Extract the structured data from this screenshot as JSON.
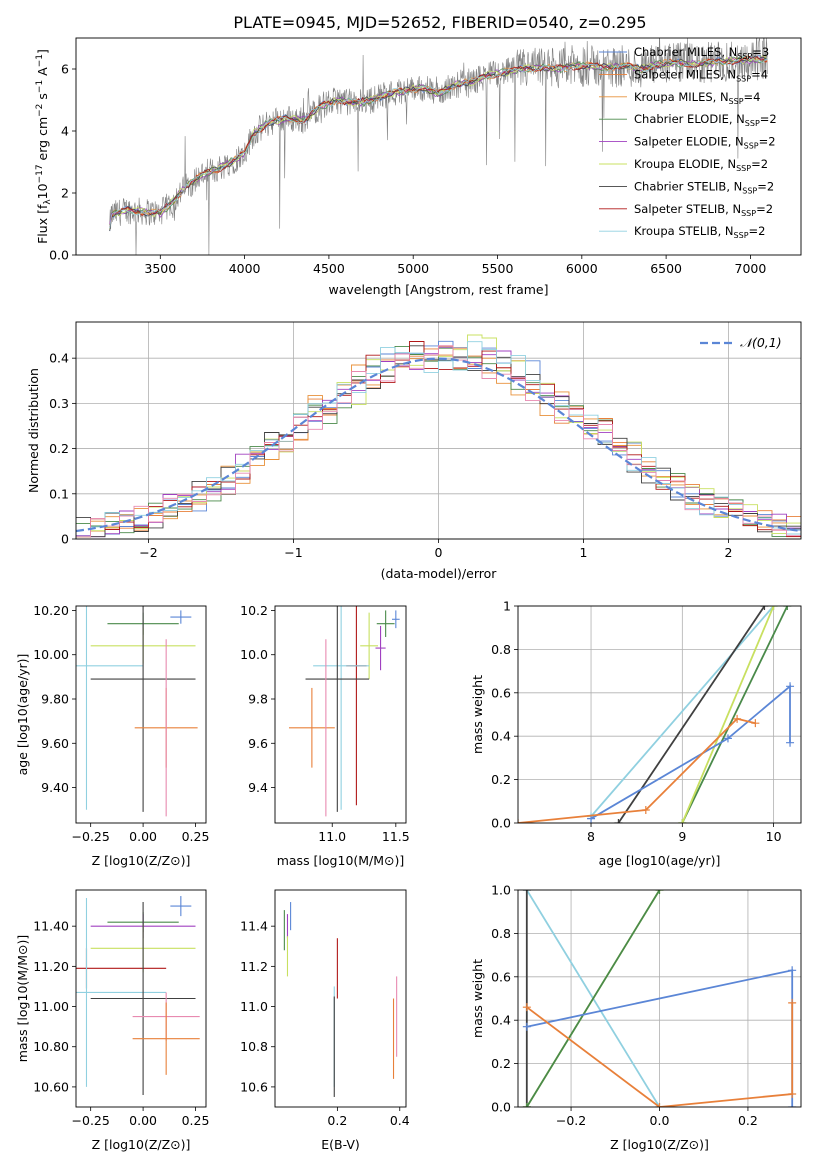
{
  "figure": {
    "title": "PLATE=0945, MJD=52652, FIBERID=0540, z=0.295"
  },
  "colors": {
    "Chabrier MILES": "#5b86d6",
    "Salpeter MILES": "#e8803a",
    "Kroupa MILES": "#e8913a",
    "Chabrier ELODIE": "#4a8a4a",
    "Salpeter ELODIE": "#a040c0",
    "Kroupa ELODIE": "#c8e060",
    "Chabrier STELIB": "#404040",
    "Salpeter STELIB": "#b01818",
    "Kroupa STELIB": "#90d0e0",
    "pink": "#e88ab0",
    "data": "#808080"
  },
  "chart_data": [
    {
      "id": "spectrum",
      "type": "line",
      "title": "PLATE=0945, MJD=52652, FIBERID=0540, z=0.295",
      "xlabel": "wavelength [Angstrom, rest frame]",
      "ylabel": "Flux [f_λ 10^-17 erg cm^-2 s^-1 A^-1]",
      "xlim": [
        3000,
        7300
      ],
      "ylim": [
        0,
        7
      ],
      "xticks": [
        3500,
        4000,
        4500,
        5000,
        5500,
        6000,
        6500,
        7000
      ],
      "yticks": [
        0,
        2,
        4,
        6
      ],
      "legend": {
        "placement": "upper-right",
        "entries": [
          {
            "label": "Chabrier MILES, N_SSP=3",
            "pre": "Chabrier MILES, N",
            "sub": "SSP",
            "post": "=3"
          },
          {
            "label": "Salpeter MILES, N_SSP=4",
            "pre": "Salpeter MILES, N",
            "sub": "SSP",
            "post": "=4"
          },
          {
            "label": "Kroupa MILES, N_SSP=4",
            "pre": "Kroupa MILES, N",
            "sub": "SSP",
            "post": "=4"
          },
          {
            "label": "Chabrier ELODIE, N_SSP=2",
            "pre": "Chabrier ELODIE, N",
            "sub": "SSP",
            "post": "=2"
          },
          {
            "label": "Salpeter ELODIE, N_SSP=2",
            "pre": "Salpeter ELODIE, N",
            "sub": "SSP",
            "post": "=2"
          },
          {
            "label": "Kroupa ELODIE, N_SSP=2",
            "pre": "Kroupa ELODIE, N",
            "sub": "SSP",
            "post": "=2"
          },
          {
            "label": "Chabrier STELIB, N_SSP=2",
            "pre": "Chabrier STELIB, N",
            "sub": "SSP",
            "post": "=2"
          },
          {
            "label": "Salpeter STELIB, N_SSP=2",
            "pre": "Salpeter STELIB, N",
            "sub": "SSP",
            "post": "=2"
          },
          {
            "label": "Kroupa STELIB, N_SSP=2",
            "pre": "Kroupa STELIB, N",
            "sub": "SSP",
            "post": "=2"
          }
        ]
      },
      "spectrum_knots": [
        [
          3200,
          0.9
        ],
        [
          3210,
          1.3
        ],
        [
          3300,
          1.45
        ],
        [
          3400,
          1.4
        ],
        [
          3500,
          1.35
        ],
        [
          3550,
          1.6
        ],
        [
          3650,
          2.2
        ],
        [
          3750,
          2.6
        ],
        [
          3850,
          2.8
        ],
        [
          3950,
          3.1
        ],
        [
          4000,
          3.3
        ],
        [
          4050,
          3.9
        ],
        [
          4150,
          4.3
        ],
        [
          4250,
          4.4
        ],
        [
          4350,
          4.35
        ],
        [
          4450,
          4.8
        ],
        [
          4550,
          5.0
        ],
        [
          4650,
          4.9
        ],
        [
          4750,
          5.0
        ],
        [
          4850,
          5.2
        ],
        [
          4950,
          5.3
        ],
        [
          5050,
          5.4
        ],
        [
          5150,
          5.2
        ],
        [
          5250,
          5.5
        ],
        [
          5350,
          5.6
        ],
        [
          5450,
          5.8
        ],
        [
          5550,
          5.9
        ],
        [
          5650,
          6.0
        ],
        [
          5750,
          6.05
        ],
        [
          5850,
          6.0
        ],
        [
          5950,
          6.1
        ],
        [
          6050,
          6.1
        ],
        [
          6150,
          6.05
        ],
        [
          6250,
          6.1
        ],
        [
          6350,
          6.0
        ],
        [
          6450,
          6.15
        ],
        [
          6550,
          6.2
        ],
        [
          6650,
          6.15
        ],
        [
          6750,
          6.2
        ],
        [
          6850,
          6.25
        ],
        [
          6950,
          6.3
        ],
        [
          7050,
          6.3
        ],
        [
          7100,
          6.35
        ]
      ]
    },
    {
      "id": "residuals",
      "type": "area",
      "xlabel": "(data-model)/error",
      "ylabel": "Normed distribution",
      "xlim": [
        -2.5,
        2.5
      ],
      "ylim": [
        0,
        0.48
      ],
      "xticks": [
        -2,
        -1,
        0,
        1,
        2
      ],
      "yticks": [
        0.0,
        0.1,
        0.2,
        0.3,
        0.4
      ],
      "legend": {
        "placement": "upper-right",
        "entries": [
          {
            "label": "𝒩(0,1)"
          }
        ]
      },
      "bin_width": 0.1
    },
    {
      "id": "age_vs_Z",
      "type": "scatter",
      "xlabel": "Z [log10(Z/Z⊙)]",
      "ylabel": "age [log10(age/yr)]",
      "xlim": [
        -0.32,
        0.3
      ],
      "ylim": [
        9.24,
        10.22
      ],
      "xticks": [
        -0.25,
        0.0,
        0.25
      ],
      "yticks": [
        9.4,
        9.6,
        9.8,
        10.0,
        10.2
      ],
      "points": [
        {
          "series": "Chabrier MILES",
          "x": 0.18,
          "y": 10.17,
          "xerr": 0.05,
          "yerr": 0.03
        },
        {
          "series": "Chabrier ELODIE",
          "x": 0.0,
          "y": 10.14,
          "xerr": 0.17,
          "yerr": 0.05
        },
        {
          "series": "Kroupa ELODIE",
          "x": 0.0,
          "y": 10.04,
          "xerr": 0.25,
          "yerr": 0.08
        },
        {
          "series": "Kroupa STELIB",
          "x": -0.27,
          "y": 9.95,
          "xerr": 0.27,
          "yerr": 0.65
        },
        {
          "series": "Chabrier STELIB",
          "x": 0.0,
          "y": 9.89,
          "xerr": 0.25,
          "yerr": 0.6
        },
        {
          "series": "Salpeter MILES",
          "x": 0.11,
          "y": 9.67,
          "xerr": 0.15,
          "yerr": 0.18
        },
        {
          "series": "pink",
          "x": 0.11,
          "y": 9.67,
          "xerr": 0.0,
          "yerr": 0.4
        }
      ]
    },
    {
      "id": "age_vs_mass",
      "type": "scatter",
      "xlabel": "mass [log10(M/M⊙)]",
      "ylabel": "",
      "xlim": [
        10.55,
        11.58
      ],
      "ylim": [
        9.24,
        10.22
      ],
      "xticks": [
        11.0,
        11.5
      ],
      "yticks": [
        9.4,
        9.6,
        9.8,
        10.0,
        10.2
      ],
      "points": [
        {
          "series": "Chabrier MILES",
          "x": 11.5,
          "y": 10.16,
          "xerr": 0.03,
          "yerr": 0.04
        },
        {
          "series": "Chabrier ELODIE",
          "x": 11.42,
          "y": 10.14,
          "xerr": 0.07,
          "yerr": 0.06
        },
        {
          "series": "Salpeter ELODIE",
          "x": 11.38,
          "y": 10.03,
          "xerr": 0.04,
          "yerr": 0.1
        },
        {
          "series": "Kroupa ELODIE",
          "x": 11.29,
          "y": 10.04,
          "xerr": 0.07,
          "yerr": 0.15
        },
        {
          "series": "Salpeter STELIB",
          "x": 11.19,
          "y": 9.95,
          "xerr": 0.08,
          "yerr": 0.63
        },
        {
          "series": "Kroupa STELIB",
          "x": 11.07,
          "y": 9.95,
          "xerr": 0.22,
          "yerr": 0.65
        },
        {
          "series": "Chabrier STELIB",
          "x": 11.04,
          "y": 9.89,
          "xerr": 0.25,
          "yerr": 0.6
        },
        {
          "series": "Salpeter MILES",
          "x": 10.84,
          "y": 9.67,
          "xerr": 0.18,
          "yerr": 0.18
        },
        {
          "series": "pink",
          "x": 10.95,
          "y": 9.67,
          "xerr": 0.0,
          "yerr": 0.4
        }
      ]
    },
    {
      "id": "massweight_vs_age",
      "type": "line",
      "xlabel": "age [log10(age/yr)]",
      "ylabel": "mass weight",
      "xlim": [
        7.2,
        10.3
      ],
      "ylim": [
        0.0,
        1.0
      ],
      "xticks": [
        8,
        9,
        10
      ],
      "yticks": [
        0.0,
        0.2,
        0.4,
        0.6,
        0.8,
        1.0
      ],
      "series": [
        {
          "name": "Kroupa STELIB",
          "x": [
            8.0,
            10.0
          ],
          "y": [
            0.03,
            1.0
          ]
        },
        {
          "name": "Chabrier STELIB",
          "x": [
            8.3,
            9.9
          ],
          "y": [
            0.0,
            1.0
          ]
        },
        {
          "name": "Chabrier ELODIE",
          "x": [
            9.0,
            10.15
          ],
          "y": [
            0.0,
            1.0
          ]
        },
        {
          "name": "Kroupa ELODIE",
          "x": [
            9.0,
            10.0
          ],
          "y": [
            0.0,
            1.0
          ]
        },
        {
          "name": "Chabrier MILES",
          "x": [
            8.0,
            9.5,
            10.18,
            10.18
          ],
          "y": [
            0.02,
            0.39,
            0.63,
            0.37
          ]
        },
        {
          "name": "Salpeter MILES",
          "x": [
            7.2,
            8.6,
            9.6,
            9.8
          ],
          "y": [
            0.0,
            0.06,
            0.48,
            0.46
          ]
        }
      ]
    },
    {
      "id": "mass_vs_Z",
      "type": "scatter",
      "xlabel": "Z [log10(Z/Z⊙)]",
      "ylabel": "mass [log10(M/M⊙)]",
      "xlim": [
        -0.32,
        0.3
      ],
      "ylim": [
        10.5,
        11.58
      ],
      "xticks": [
        -0.25,
        0.0,
        0.25
      ],
      "yticks": [
        10.6,
        10.8,
        11.0,
        11.2,
        11.4
      ],
      "points": [
        {
          "series": "Chabrier MILES",
          "x": 0.18,
          "y": 11.5,
          "xerr": 0.05,
          "yerr": 0.05
        },
        {
          "series": "Chabrier ELODIE",
          "x": 0.0,
          "y": 11.42,
          "xerr": 0.17,
          "yerr": 0.05
        },
        {
          "series": "Salpeter ELODIE",
          "x": 0.0,
          "y": 11.4,
          "xerr": 0.25,
          "yerr": 0.06
        },
        {
          "series": "Kroupa ELODIE",
          "x": 0.0,
          "y": 11.29,
          "xerr": 0.25,
          "yerr": 0.12
        },
        {
          "series": "Salpeter STELIB",
          "x": -0.27,
          "y": 11.19,
          "xerr": 0.38,
          "yerr": 0.1
        },
        {
          "series": "Kroupa STELIB",
          "x": -0.27,
          "y": 11.07,
          "xerr": 0.38,
          "yerr": 0.47
        },
        {
          "series": "Chabrier STELIB",
          "x": 0.0,
          "y": 11.04,
          "xerr": 0.25,
          "yerr": 0.48
        },
        {
          "series": "pink",
          "x": 0.11,
          "y": 10.95,
          "xerr": 0.16,
          "yerr": 0.12
        },
        {
          "series": "Salpeter MILES",
          "x": 0.11,
          "y": 10.84,
          "xerr": 0.16,
          "yerr": 0.18
        }
      ]
    },
    {
      "id": "mass_vs_EBV",
      "type": "scatter",
      "xlabel": "E(B-V)",
      "ylabel": "",
      "xlim": [
        0.0,
        0.42
      ],
      "ylim": [
        10.5,
        11.58
      ],
      "xticks": [
        0.2,
        0.4
      ],
      "yticks": [
        10.6,
        10.8,
        11.0,
        11.2,
        11.4
      ],
      "points": [
        {
          "series": "Chabrier MILES",
          "x": 0.05,
          "y": 11.45,
          "xerr": 0.0,
          "yerr": 0.07
        },
        {
          "series": "Salpeter ELODIE",
          "x": 0.04,
          "y": 11.4,
          "xerr": 0.0,
          "yerr": 0.06
        },
        {
          "series": "Chabrier ELODIE",
          "x": 0.03,
          "y": 11.38,
          "xerr": 0.0,
          "yerr": 0.1
        },
        {
          "series": "Kroupa ELODIE",
          "x": 0.04,
          "y": 11.25,
          "xerr": 0.0,
          "yerr": 0.1
        },
        {
          "series": "Salpeter STELIB",
          "x": 0.2,
          "y": 11.19,
          "xerr": 0.0,
          "yerr": 0.15
        },
        {
          "series": "Kroupa STELIB",
          "x": 0.19,
          "y": 10.85,
          "xerr": 0.0,
          "yerr": 0.25
        },
        {
          "series": "Chabrier STELIB",
          "x": 0.19,
          "y": 10.8,
          "xerr": 0.0,
          "yerr": 0.25
        },
        {
          "series": "pink",
          "x": 0.39,
          "y": 10.95,
          "xerr": 0.0,
          "yerr": 0.2
        },
        {
          "series": "Salpeter MILES",
          "x": 0.38,
          "y": 10.84,
          "xerr": 0.0,
          "yerr": 0.2
        }
      ]
    },
    {
      "id": "massweight_vs_Z",
      "type": "line",
      "xlabel": "Z [log10(Z/Z⊙)]",
      "ylabel": "mass weight",
      "xlim": [
        -0.32,
        0.32
      ],
      "ylim": [
        0.0,
        1.0
      ],
      "xticks": [
        -0.2,
        0.0,
        0.2
      ],
      "yticks": [
        0.0,
        0.2,
        0.4,
        0.6,
        0.8,
        1.0
      ],
      "series": [
        {
          "name": "Kroupa STELIB",
          "x": [
            -0.3,
            0.0
          ],
          "y": [
            1.0,
            0.0
          ]
        },
        {
          "name": "Chabrier STELIB",
          "x": [
            -0.3,
            -0.3
          ],
          "y": [
            0.0,
            1.0
          ]
        },
        {
          "name": "Kroupa ELODIE",
          "x": [
            -0.3,
            0.0
          ],
          "y": [
            0.0,
            1.0
          ]
        },
        {
          "name": "Chabrier ELODIE",
          "x": [
            -0.3,
            0.0
          ],
          "y": [
            0.0,
            1.0
          ]
        },
        {
          "name": "Chabrier MILES",
          "x": [
            -0.3,
            0.3,
            0.3
          ],
          "y": [
            0.37,
            0.63,
            0.0
          ]
        },
        {
          "name": "Salpeter MILES",
          "x": [
            -0.3,
            0.0,
            0.3,
            0.3
          ],
          "y": [
            0.46,
            0.0,
            0.06,
            0.48
          ]
        }
      ]
    }
  ]
}
